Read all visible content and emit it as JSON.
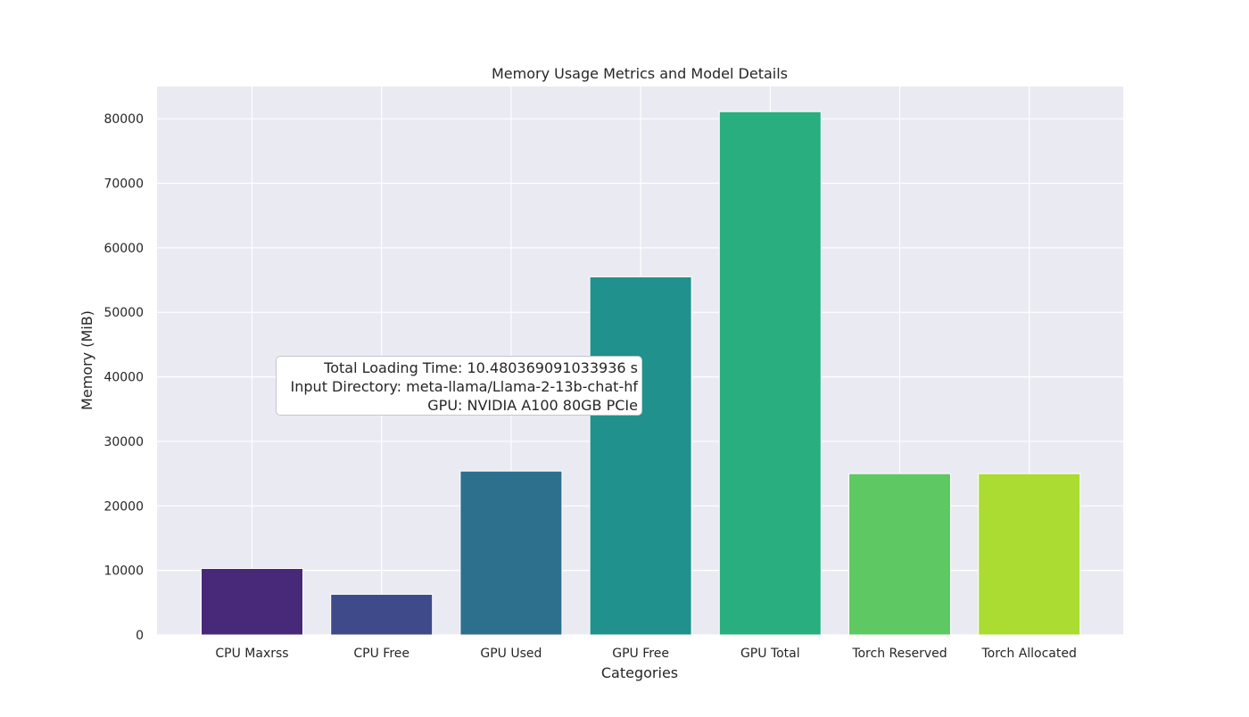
{
  "chart_data": {
    "type": "bar",
    "title": "Memory Usage Metrics and Model Details",
    "xlabel": "Categories",
    "ylabel": "Memory (MiB)",
    "categories": [
      "CPU Maxrss",
      "CPU Free",
      "GPU Used",
      "GPU Free",
      "GPU Total",
      "Torch Reserved",
      "Torch Allocated"
    ],
    "values": [
      10300,
      6300,
      25400,
      55500,
      81100,
      25000,
      25000
    ],
    "colors": [
      "#482878",
      "#3e4a89",
      "#2d708e",
      "#20918c",
      "#29af7f",
      "#5ec962",
      "#aadc32"
    ],
    "ylim": [
      0,
      85000
    ],
    "yticks": [
      0,
      10000,
      20000,
      30000,
      40000,
      50000,
      60000,
      70000,
      80000
    ],
    "grid": true,
    "background_color": "#eaeaf2",
    "grid_color": "#ffffff",
    "annotation": {
      "lines": [
        "Total Loading Time: 10.480369091033936 s",
        "Input Directory: meta-llama/Llama-2-13b-chat-hf",
        "GPU: NVIDIA A100 80GB PCIe"
      ]
    }
  }
}
